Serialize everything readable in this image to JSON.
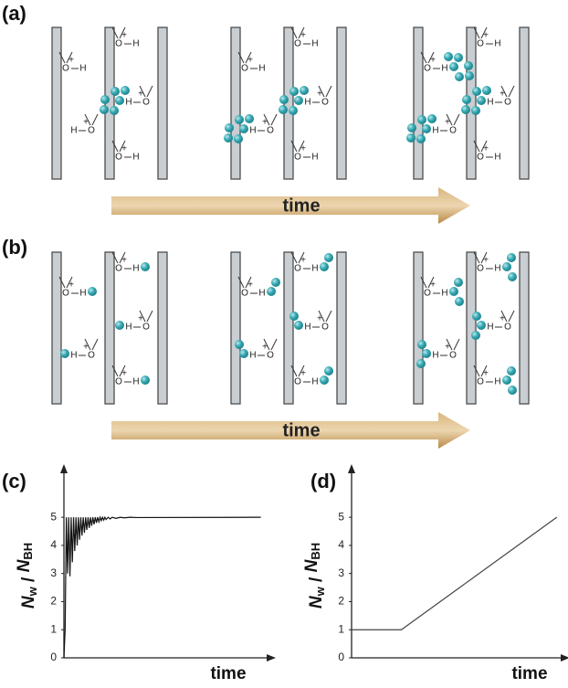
{
  "figure": {
    "panels": [
      "(a)",
      "(b)"
    ],
    "arrow_label": "time",
    "site_atoms": {
      "oxygen": "O",
      "charge": "+",
      "hydrogen": "H"
    }
  },
  "chart_data": [
    {
      "type": "line",
      "panel_label": "(c)",
      "xlabel": "time",
      "ylabel": [
        "N",
        "w",
        " / ",
        "N",
        "BH"
      ],
      "x": [
        0,
        0.6,
        1.2,
        1.8,
        2.4,
        3,
        3.6,
        4.2,
        4.8,
        5.4,
        6,
        6.6,
        7.2,
        7.8,
        8.4,
        9,
        9.6,
        10.2,
        10.8,
        11.4,
        12,
        12.6,
        13.2,
        13.8,
        14.4,
        15,
        15.6,
        16.2,
        16.8,
        17.4,
        18,
        18.6,
        19.2,
        19.8,
        20.4,
        21,
        22,
        23,
        24,
        26,
        28,
        30,
        33,
        36,
        98
      ],
      "values": [
        0,
        1,
        5,
        3,
        5,
        2.9,
        5,
        3.4,
        5,
        3.8,
        5,
        4.0,
        5,
        4.2,
        5,
        4.35,
        5,
        4.45,
        5,
        4.55,
        5,
        4.62,
        5,
        4.7,
        5,
        4.75,
        5,
        4.8,
        5,
        4.84,
        5,
        4.88,
        5,
        4.9,
        5,
        4.92,
        5,
        4.94,
        5,
        4.96,
        5,
        4.98,
        5,
        4.99,
        5
      ],
      "color": "#111111",
      "xlim": [
        0,
        100
      ],
      "ylim": [
        0,
        6.5
      ],
      "yticks": [
        0,
        1,
        2,
        3,
        4,
        5
      ]
    },
    {
      "type": "line",
      "panel_label": "(d)",
      "xlabel": "time",
      "ylabel": [
        "N",
        "w",
        " / ",
        "N",
        "BH"
      ],
      "x": [
        0,
        24,
        99
      ],
      "values": [
        1,
        1,
        5
      ],
      "color": "#444444",
      "xlim": [
        0,
        100
      ],
      "ylim": [
        0,
        6.5
      ],
      "yticks": [
        0,
        1,
        2,
        3,
        4,
        5
      ]
    }
  ]
}
